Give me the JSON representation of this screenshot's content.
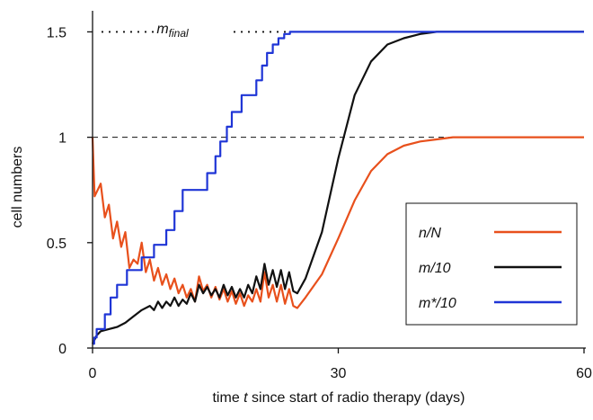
{
  "chart_data": {
    "type": "line",
    "xlabel_prefix": "time ",
    "xlabel_var": "t",
    "xlabel_suffix": " since start of radio therapy (days)",
    "ylabel": "cell numbers",
    "xlim": [
      0,
      60
    ],
    "ylim": [
      0,
      1.6
    ],
    "x_ticks": [
      0,
      30,
      60
    ],
    "x_tick_labels": [
      "0",
      "30",
      "60"
    ],
    "y_ticks": [
      0,
      0.5,
      1,
      1.5
    ],
    "y_tick_labels": [
      "0",
      "0.5",
      "1",
      "1.5"
    ],
    "annotation": {
      "main": "m",
      "sub": "final",
      "y": 1.5
    },
    "reference_line_y": 1.0,
    "legend_position": "lower-right",
    "series": [
      {
        "name": "n/N",
        "color": "#e8501c",
        "x": [
          0,
          0.25,
          1,
          1.5,
          2,
          2.5,
          3,
          3.5,
          4,
          4.5,
          5,
          5.5,
          6,
          6.5,
          7,
          7.5,
          8,
          8.5,
          9,
          9.5,
          10,
          10.5,
          11,
          11.5,
          12,
          12.5,
          13,
          13.5,
          14,
          14.5,
          15,
          15.5,
          16,
          16.5,
          17,
          17.5,
          18,
          18.5,
          19,
          19.5,
          20,
          20.5,
          21,
          21.5,
          22,
          22.5,
          23,
          23.5,
          24,
          24.5,
          25,
          26,
          28,
          30,
          32,
          34,
          36,
          38,
          40,
          42,
          44,
          46,
          48,
          50,
          55,
          60
        ],
        "y": [
          1.0,
          0.72,
          0.78,
          0.62,
          0.68,
          0.52,
          0.6,
          0.48,
          0.55,
          0.38,
          0.42,
          0.4,
          0.5,
          0.36,
          0.42,
          0.32,
          0.38,
          0.3,
          0.35,
          0.28,
          0.33,
          0.26,
          0.3,
          0.24,
          0.28,
          0.22,
          0.34,
          0.27,
          0.3,
          0.24,
          0.29,
          0.23,
          0.28,
          0.22,
          0.27,
          0.21,
          0.26,
          0.2,
          0.25,
          0.22,
          0.28,
          0.22,
          0.36,
          0.24,
          0.3,
          0.22,
          0.3,
          0.21,
          0.28,
          0.2,
          0.19,
          0.24,
          0.35,
          0.52,
          0.7,
          0.84,
          0.92,
          0.96,
          0.98,
          0.99,
          1.0,
          1.0,
          1.0,
          1.0,
          1.0,
          1.0
        ]
      },
      {
        "name": "m/10",
        "color": "#111111",
        "x": [
          0,
          0.5,
          1,
          2,
          3,
          4,
          5,
          6,
          7,
          7.5,
          8,
          8.5,
          9,
          9.5,
          10,
          10.5,
          11,
          11.5,
          12,
          12.5,
          13,
          13.5,
          14,
          14.5,
          15,
          15.5,
          16,
          16.5,
          17,
          17.5,
          18,
          18.5,
          19,
          19.5,
          20,
          20.5,
          21,
          21.5,
          22,
          22.5,
          23,
          23.5,
          24,
          24.5,
          25,
          26,
          28,
          30,
          32,
          34,
          36,
          38,
          40,
          42,
          44,
          46,
          48,
          50,
          55,
          60
        ],
        "y": [
          0.02,
          0.06,
          0.08,
          0.09,
          0.1,
          0.12,
          0.15,
          0.18,
          0.2,
          0.18,
          0.22,
          0.19,
          0.22,
          0.2,
          0.24,
          0.2,
          0.23,
          0.21,
          0.26,
          0.22,
          0.3,
          0.26,
          0.29,
          0.25,
          0.28,
          0.24,
          0.3,
          0.25,
          0.29,
          0.24,
          0.28,
          0.24,
          0.3,
          0.26,
          0.34,
          0.28,
          0.4,
          0.3,
          0.37,
          0.29,
          0.37,
          0.28,
          0.36,
          0.27,
          0.26,
          0.33,
          0.55,
          0.9,
          1.2,
          1.36,
          1.44,
          1.47,
          1.49,
          1.5,
          1.5,
          1.5,
          1.5,
          1.5,
          1.5,
          1.5
        ]
      },
      {
        "name": "m*/10",
        "color": "#1f35d6",
        "x": [
          0,
          0.2,
          0.2,
          0.5,
          0.5,
          1.5,
          1.5,
          2.2,
          2.2,
          3,
          3,
          4.2,
          4.2,
          6,
          6,
          7.5,
          7.5,
          9,
          9,
          10,
          10,
          11,
          11,
          13,
          13,
          14,
          14,
          15,
          15,
          15.6,
          15.6,
          16.4,
          16.4,
          17,
          17,
          17.6,
          17.6,
          18.2,
          18.2,
          20,
          20,
          20.7,
          20.7,
          21.3,
          21.3,
          22,
          22,
          22.7,
          22.7,
          23.4,
          23.4,
          24.1,
          24.1,
          24.8,
          24.8,
          25.3,
          25.3,
          60
        ],
        "y": [
          0.02,
          0.02,
          0.05,
          0.05,
          0.09,
          0.09,
          0.16,
          0.16,
          0.24,
          0.24,
          0.3,
          0.3,
          0.37,
          0.37,
          0.43,
          0.43,
          0.49,
          0.49,
          0.56,
          0.56,
          0.65,
          0.65,
          0.75,
          0.75,
          0.75,
          0.75,
          0.83,
          0.83,
          0.91,
          0.91,
          0.98,
          0.98,
          1.05,
          1.05,
          1.12,
          1.12,
          1.12,
          1.12,
          1.2,
          1.2,
          1.27,
          1.27,
          1.34,
          1.34,
          1.4,
          1.4,
          1.44,
          1.44,
          1.47,
          1.47,
          1.49,
          1.49,
          1.5,
          1.5,
          1.5,
          1.5,
          1.5,
          1.5
        ]
      }
    ]
  }
}
